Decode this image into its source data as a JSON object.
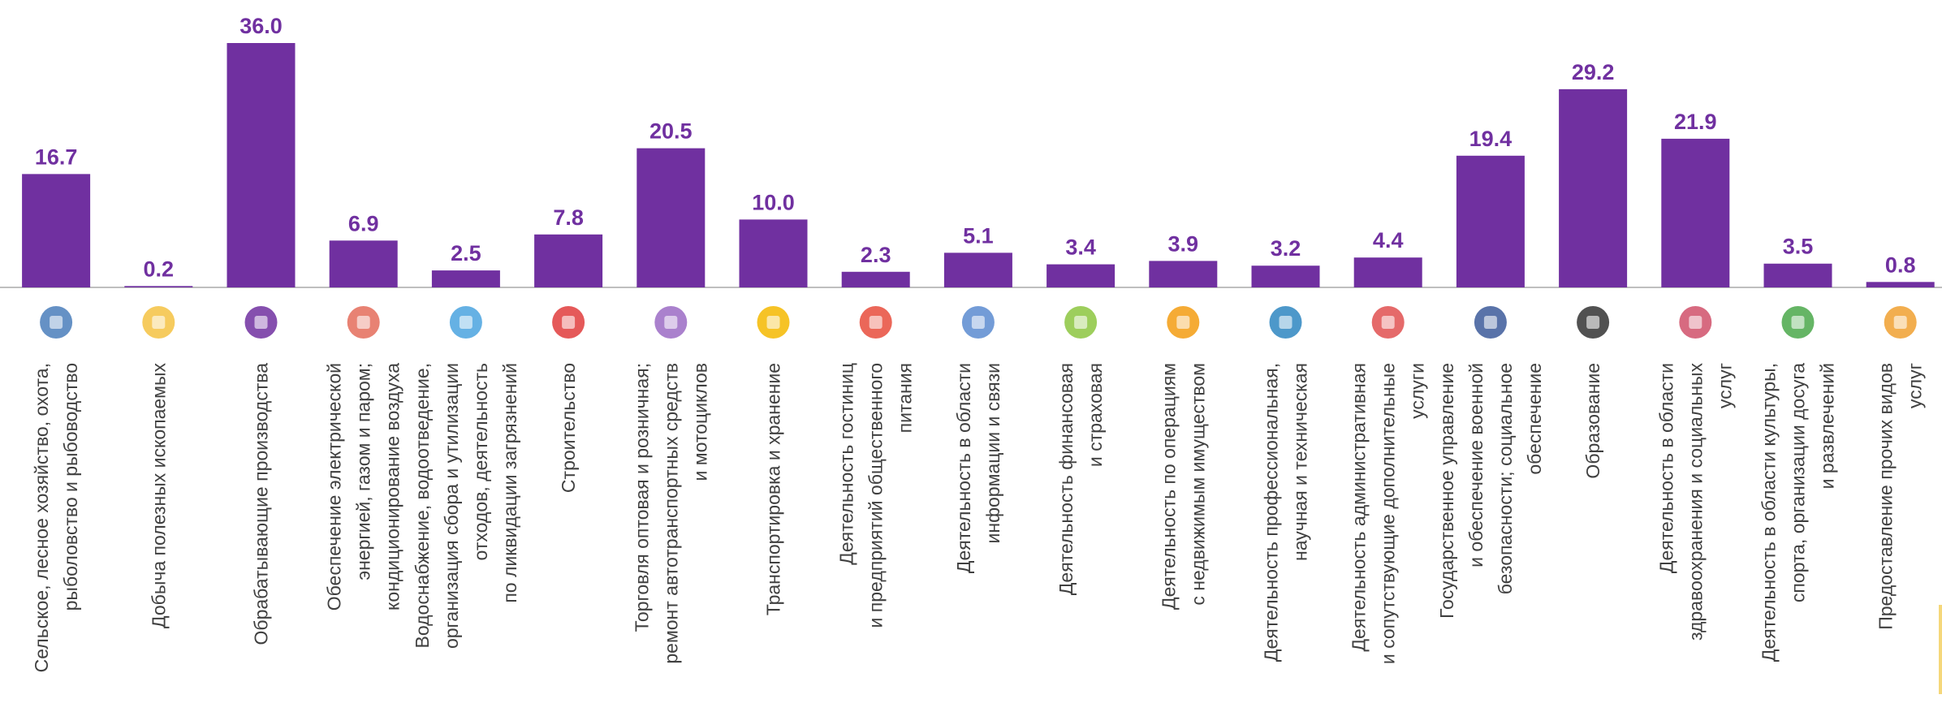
{
  "chart_data": {
    "type": "bar",
    "categories": [
      "Сельское, лесное хозяйство, охота,\nрыболовство и рыбоводство",
      "Добыча полезных ископаемых",
      "Обрабатывающие производства",
      "Обеспечение электрической\nэнергией, газом и паром;\nкондиционирование воздуха",
      "Водоснабжение, водоотведение,\nорганизация сбора и утилизации\nотходов, деятельность\nпо ликвидации загрязнений",
      "Строительство",
      "Торговля оптовая и розничная;\nремонт автотранспортных средств\nи мотоциклов",
      "Транспортировка и хранение",
      "Деятельность гостиниц\nи предприятий общественного\nпитания",
      "Деятельность в области\nинформации и связи",
      "Деятельность финансовая\nи страховая",
      "Деятельность по операциям\nс недвижимым имуществом",
      "Деятельность профессиональная,\nнаучная и техническая",
      "Деятельность административная\nи сопутствующие дополнительные\nуслуги",
      "Государственное управление\nи обеспечение военной\nбезопасности; социальное\nобеспечение",
      "Образование",
      "Деятельность в области\nздравоохранения и социальных\nуслуг",
      "Деятельность в области культуры,\nспорта, организации досуга\nи развлечений",
      "Предоставление прочих видов\nуслуг"
    ],
    "values": [
      16.7,
      0.2,
      36,
      6.9,
      2.5,
      7.8,
      20.5,
      10,
      2.3,
      5.1,
      3.4,
      3.9,
      3.2,
      4.4,
      19.4,
      29.2,
      21.9,
      3.5,
      0.8
    ],
    "value_labels": [
      "16.7",
      "0.2",
      "36.0",
      "6.9",
      "2.5",
      "7.8",
      "20.5",
      "10.0",
      "2.3",
      "5.1",
      "3.4",
      "3.9",
      "3.2",
      "4.4",
      "19.4",
      "29.2",
      "21.9",
      "3.5",
      "0.8"
    ],
    "color": "#7030a0"
  }
}
